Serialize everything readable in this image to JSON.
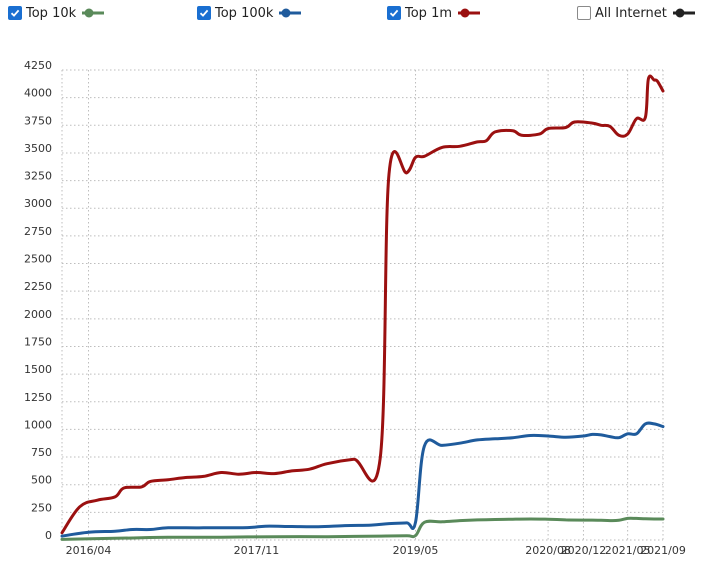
{
  "legend": {
    "items": [
      {
        "label": "Top 10k",
        "checked": true,
        "color": "#5a8a5a"
      },
      {
        "label": "Top 100k",
        "checked": true,
        "color": "#1f5b9c"
      },
      {
        "label": "Top 1m",
        "checked": true,
        "color": "#9b1010"
      },
      {
        "label": "All Internet",
        "checked": false,
        "color": "#222222"
      }
    ]
  },
  "chart_data": {
    "type": "line",
    "title": "",
    "xlabel": "",
    "ylabel": "",
    "ylim": [
      0,
      4250
    ],
    "yticks": [
      0,
      250,
      500,
      750,
      1000,
      1250,
      1500,
      1750,
      2000,
      2250,
      2500,
      2750,
      3000,
      3250,
      3500,
      3750,
      4000,
      4250
    ],
    "xlim": [
      "2016-01",
      "2021-09"
    ],
    "xticks": [
      "2016/04",
      "2017/11",
      "2019/05",
      "2020/08",
      "2020/12",
      "2021/05",
      "2021/09"
    ],
    "grid": true,
    "legend_position": "top",
    "series": [
      {
        "name": "Top 10k",
        "color": "#5a8a5a",
        "points": [
          [
            "2016-01",
            5
          ],
          [
            "2016-07",
            15
          ],
          [
            "2016-10",
            20
          ],
          [
            "2017-01",
            25
          ],
          [
            "2017-07",
            25
          ],
          [
            "2017-10",
            28
          ],
          [
            "2018-01",
            30
          ],
          [
            "2018-07",
            30
          ],
          [
            "2018-10",
            33
          ],
          [
            "2019-01",
            35
          ],
          [
            "2019-04",
            38
          ],
          [
            "2019-05",
            40
          ],
          [
            "2019-06",
            160
          ],
          [
            "2019-08",
            165
          ],
          [
            "2019-10",
            175
          ],
          [
            "2019-12",
            182
          ],
          [
            "2020-02",
            185
          ],
          [
            "2020-04",
            188
          ],
          [
            "2020-06",
            190
          ],
          [
            "2020-08",
            188
          ],
          [
            "2020-10",
            182
          ],
          [
            "2020-12",
            180
          ],
          [
            "2021-01",
            180
          ],
          [
            "2021-02",
            178
          ],
          [
            "2021-03",
            175
          ],
          [
            "2021-04",
            178
          ],
          [
            "2021-05",
            195
          ],
          [
            "2021-06",
            195
          ],
          [
            "2021-07",
            192
          ],
          [
            "2021-08",
            190
          ],
          [
            "2021-09",
            190
          ]
        ]
      },
      {
        "name": "Top 100k",
        "color": "#1f5b9c",
        "points": [
          [
            "2016-01",
            35
          ],
          [
            "2016-04",
            70
          ],
          [
            "2016-07",
            80
          ],
          [
            "2016-09",
            95
          ],
          [
            "2016-11",
            95
          ],
          [
            "2017-01",
            110
          ],
          [
            "2017-05",
            110
          ],
          [
            "2017-10",
            112
          ],
          [
            "2017-12",
            125
          ],
          [
            "2018-03",
            122
          ],
          [
            "2018-06",
            120
          ],
          [
            "2018-09",
            130
          ],
          [
            "2018-12",
            135
          ],
          [
            "2019-02",
            148
          ],
          [
            "2019-04",
            155
          ],
          [
            "2019-05",
            160
          ],
          [
            "2019-06",
            850
          ],
          [
            "2019-08",
            855
          ],
          [
            "2019-10",
            875
          ],
          [
            "2019-12",
            905
          ],
          [
            "2020-02",
            915
          ],
          [
            "2020-04",
            925
          ],
          [
            "2020-06",
            945
          ],
          [
            "2020-08",
            940
          ],
          [
            "2020-10",
            930
          ],
          [
            "2020-12",
            940
          ],
          [
            "2021-01",
            955
          ],
          [
            "2021-02",
            950
          ],
          [
            "2021-03",
            935
          ],
          [
            "2021-04",
            925
          ],
          [
            "2021-05",
            960
          ],
          [
            "2021-06",
            960
          ],
          [
            "2021-07",
            1050
          ],
          [
            "2021-08",
            1050
          ],
          [
            "2021-09",
            1025
          ]
        ]
      },
      {
        "name": "Top 1m",
        "color": "#9b1010",
        "points": [
          [
            "2016-01",
            65
          ],
          [
            "2016-03",
            300
          ],
          [
            "2016-05",
            360
          ],
          [
            "2016-07",
            390
          ],
          [
            "2016-08",
            470
          ],
          [
            "2016-10",
            480
          ],
          [
            "2016-11",
            530
          ],
          [
            "2017-01",
            545
          ],
          [
            "2017-03",
            565
          ],
          [
            "2017-05",
            575
          ],
          [
            "2017-07",
            610
          ],
          [
            "2017-09",
            595
          ],
          [
            "2017-11",
            610
          ],
          [
            "2018-01",
            600
          ],
          [
            "2018-03",
            625
          ],
          [
            "2018-05",
            640
          ],
          [
            "2018-07",
            690
          ],
          [
            "2018-10",
            730
          ],
          [
            "2019-01",
            740
          ],
          [
            "2019-02",
            3310
          ],
          [
            "2019-04",
            3320
          ],
          [
            "2019-05",
            3460
          ],
          [
            "2019-06",
            3470
          ],
          [
            "2019-08",
            3550
          ],
          [
            "2019-10",
            3560
          ],
          [
            "2019-12",
            3600
          ],
          [
            "2020-01",
            3610
          ],
          [
            "2020-02",
            3690
          ],
          [
            "2020-04",
            3700
          ],
          [
            "2020-05",
            3660
          ],
          [
            "2020-07",
            3670
          ],
          [
            "2020-08",
            3720
          ],
          [
            "2020-10",
            3730
          ],
          [
            "2020-11",
            3780
          ],
          [
            "2021-01",
            3770
          ],
          [
            "2021-02",
            3750
          ],
          [
            "2021-03",
            3740
          ],
          [
            "2021-04",
            3660
          ],
          [
            "2021-05",
            3670
          ],
          [
            "2021-06",
            3810
          ],
          [
            "2021-07",
            3820
          ],
          [
            "2021-07",
            4170
          ],
          [
            "2021-08",
            4160
          ],
          [
            "2021-08",
            4150
          ],
          [
            "2021-09",
            4060
          ]
        ]
      }
    ]
  }
}
